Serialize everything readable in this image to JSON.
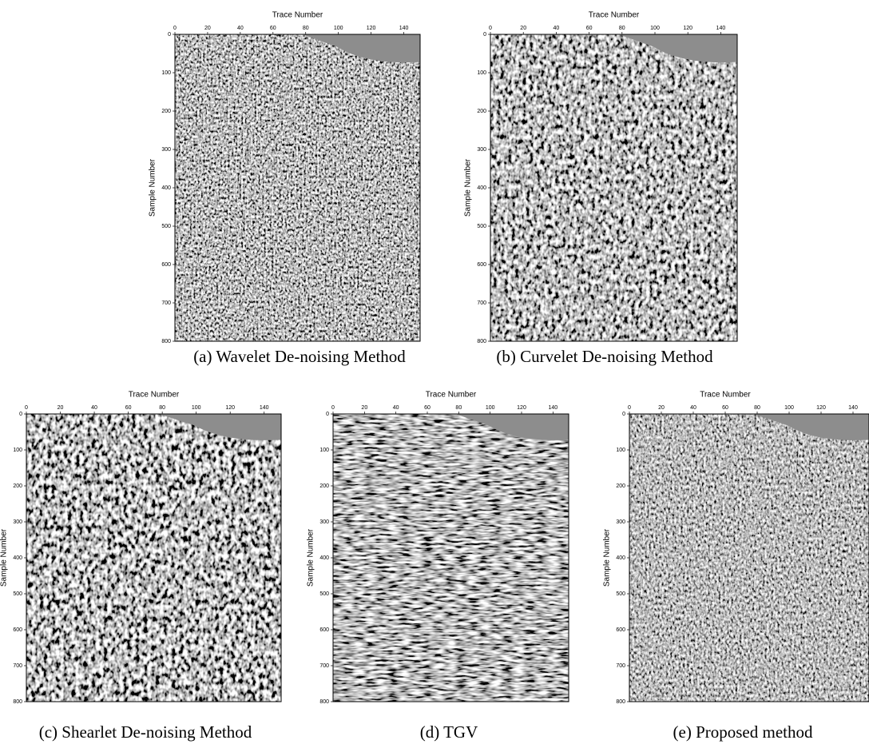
{
  "figure": {
    "panels": [
      {
        "caption": "(a) Wavelet De-noising Method",
        "x_label": "Trace Number",
        "y_label": "Sample Number",
        "xlim": [
          0,
          150
        ],
        "ylim": [
          0,
          800
        ],
        "xticks": [
          0,
          20,
          40,
          60,
          80,
          100,
          120,
          140
        ],
        "yticks": [
          0,
          100,
          200,
          300,
          400,
          500,
          600,
          700,
          800
        ]
      },
      {
        "caption": "(b) Curvelet De-noising Method",
        "x_label": "Trace Number",
        "y_label": "Sample Number",
        "xlim": [
          0,
          150
        ],
        "ylim": [
          0,
          800
        ],
        "xticks": [
          0,
          20,
          40,
          60,
          80,
          100,
          120,
          140
        ],
        "yticks": [
          0,
          100,
          200,
          300,
          400,
          500,
          600,
          700,
          800
        ]
      },
      {
        "caption": "(c) Shearlet De-noising Method",
        "x_label": "Trace Number",
        "y_label": "Sample Number",
        "xlim": [
          0,
          150
        ],
        "ylim": [
          0,
          800
        ],
        "xticks": [
          0,
          20,
          40,
          60,
          80,
          100,
          120,
          140
        ],
        "yticks": [
          0,
          100,
          200,
          300,
          400,
          500,
          600,
          700,
          800
        ]
      },
      {
        "caption": "(d) TGV",
        "x_label": "Trace Number",
        "y_label": "Sample Number",
        "xlim": [
          0,
          150
        ],
        "ylim": [
          0,
          800
        ],
        "xticks": [
          0,
          20,
          40,
          60,
          80,
          100,
          120,
          140
        ],
        "yticks": [
          0,
          100,
          200,
          300,
          400,
          500,
          600,
          700,
          800
        ]
      },
      {
        "caption": "(e) Proposed method",
        "x_label": "Trace Number",
        "y_label": "Sample Number",
        "xlim": [
          0,
          150
        ],
        "ylim": [
          0,
          800
        ],
        "xticks": [
          0,
          20,
          40,
          60,
          80,
          100,
          120,
          140
        ],
        "yticks": [
          0,
          100,
          200,
          300,
          400,
          500,
          600,
          700,
          800
        ]
      }
    ]
  }
}
